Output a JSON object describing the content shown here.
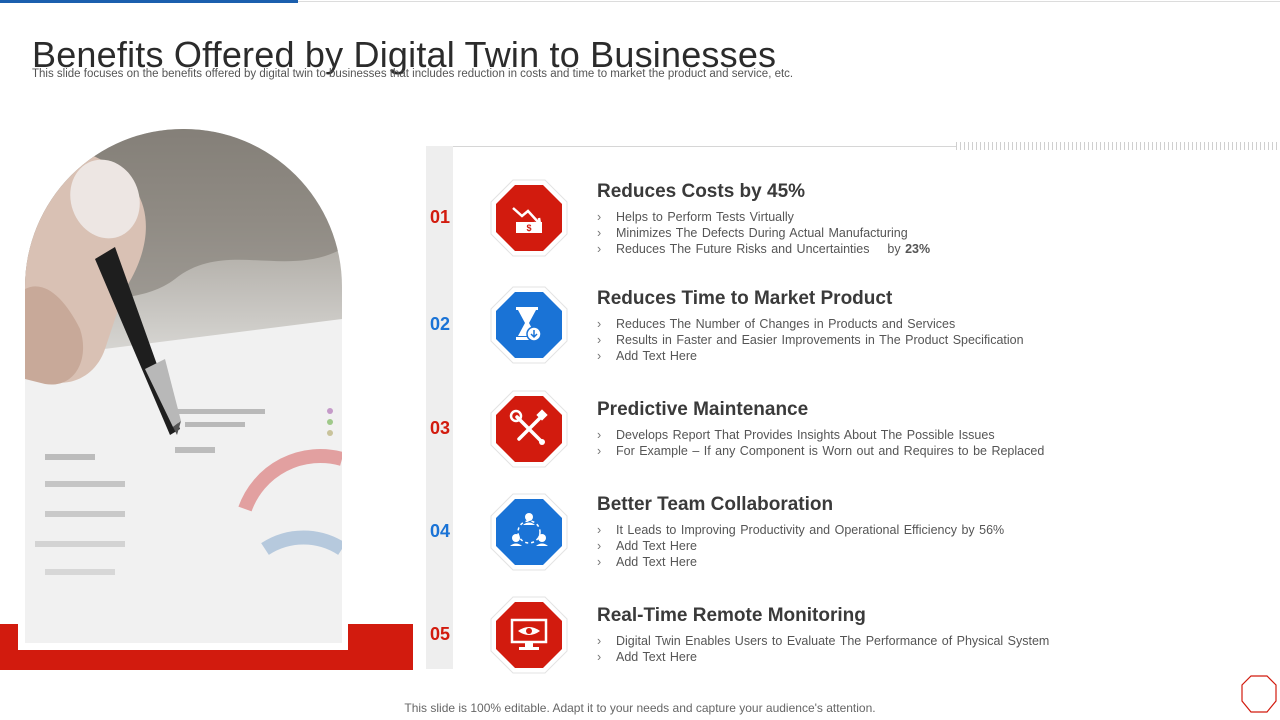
{
  "title": "Benefits Offered by Digital Twin to Businesses",
  "subtitle": "This slide focuses on the benefits offered by digital twin to businesses that includes reduction in costs and time to market the product and service, etc.",
  "footer": "This slide is 100% editable. Adapt it to your needs and capture your audience's attention.",
  "colors": {
    "red": "#d21b0e",
    "blue": "#1a73d6"
  },
  "photo": {
    "icon": "hand-pen-document-photo"
  },
  "items": [
    {
      "number": "01",
      "title": "Reduces Costs by 45%",
      "icon": "cost-down-icon",
      "color": "red",
      "bullets": [
        "Helps to Perform Tests Virtually",
        "Minimizes The Defects During Actual Manufacturing",
        "Reduces The Future Risks and Uncertainties"
      ],
      "bullet3_suffix_pre": "by ",
      "bullet3_suffix_bold": "23%"
    },
    {
      "number": "02",
      "title": "Reduces Time to Market Product",
      "icon": "hourglass-icon",
      "color": "blue",
      "bullets": [
        "Reduces The Number of Changes in Products and Services",
        "Results in Faster and Easier Improvements in The Product Specification",
        "Add Text Here"
      ]
    },
    {
      "number": "03",
      "title": "Predictive Maintenance",
      "icon": "tools-icon",
      "color": "red",
      "bullets": [
        "Develops Report That Provides Insights About The Possible Issues",
        "For Example – If any Component is Worn out and Requires to be Replaced"
      ]
    },
    {
      "number": "04",
      "title": "Better Team Collaboration",
      "icon": "team-icon",
      "color": "blue",
      "bullets": [
        "It Leads to Improving Productivity and Operational Efficiency by 56%",
        "Add Text Here",
        "Add Text Here"
      ]
    },
    {
      "number": "05",
      "title": "Real-Time Remote Monitoring",
      "icon": "monitor-eye-icon",
      "color": "red",
      "bullets": [
        "Digital Twin Enables Users to Evaluate The Performance of Physical System",
        "Add Text Here"
      ]
    }
  ]
}
